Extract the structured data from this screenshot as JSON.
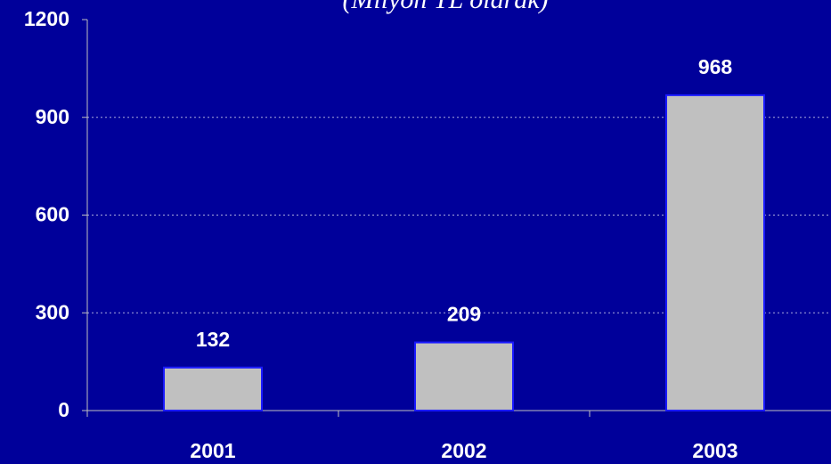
{
  "chart_data": {
    "type": "bar",
    "subtitle": "(Milyon TL olarak)",
    "categories": [
      "2001",
      "2002",
      "2003"
    ],
    "values": [
      132,
      209,
      968
    ],
    "color": "#c0c0c0",
    "ylim": [
      0,
      1200
    ],
    "yticks": [
      0,
      300,
      600,
      900,
      1200
    ],
    "grid": true
  }
}
